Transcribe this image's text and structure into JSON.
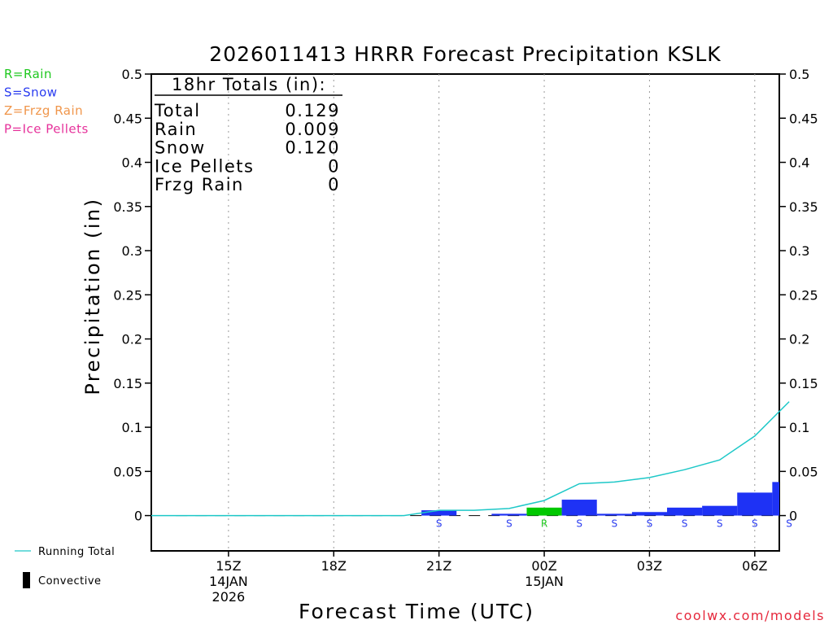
{
  "chart_data": {
    "type": "bar",
    "title": "2026011413 HRRR Forecast Precipitation KSLK",
    "xlabel": "Forecast Time (UTC)",
    "ylabel": "Precipitation (in)",
    "ylim": [
      -0.04,
      0.5
    ],
    "y_ticks": [
      0,
      0.05,
      0.1,
      0.15,
      0.2,
      0.25,
      0.3,
      0.35,
      0.4,
      0.45,
      0.5
    ],
    "y_tick_labels": [
      "0",
      "0.05",
      "0.1",
      "0.15",
      "0.2",
      "0.25",
      "0.3",
      "0.35",
      "0.4",
      "0.45",
      "0.5"
    ],
    "x_range_hours": [
      -1.2,
      16.7
    ],
    "x_ticks": [
      {
        "hour": 1,
        "lines": [
          "15Z",
          "14JAN",
          "2026"
        ]
      },
      {
        "hour": 4,
        "lines": [
          "18Z"
        ]
      },
      {
        "hour": 7,
        "lines": [
          "21Z"
        ]
      },
      {
        "hour": 10,
        "lines": [
          "00Z",
          "15JAN"
        ]
      },
      {
        "hour": 13,
        "lines": [
          "03Z"
        ]
      },
      {
        "hour": 16,
        "lines": [
          "06Z"
        ]
      }
    ],
    "bars": [
      {
        "hour": 0,
        "value": 0.0,
        "type": "S"
      },
      {
        "hour": 1,
        "value": 0.0,
        "type": "S"
      },
      {
        "hour": 2,
        "value": 0.0,
        "type": "S"
      },
      {
        "hour": 3,
        "value": 0.0,
        "type": "S"
      },
      {
        "hour": 4,
        "value": 0.0,
        "type": "S"
      },
      {
        "hour": 5,
        "value": 0.0,
        "type": "S"
      },
      {
        "hour": 6,
        "value": 0.0,
        "type": "S"
      },
      {
        "hour": 7,
        "value": 0.006,
        "type": "S"
      },
      {
        "hour": 8,
        "value": 0.0,
        "type": "S"
      },
      {
        "hour": 9,
        "value": 0.002,
        "type": "S"
      },
      {
        "hour": 10,
        "value": 0.009,
        "type": "R"
      },
      {
        "hour": 11,
        "value": 0.018,
        "type": "S"
      },
      {
        "hour": 12,
        "value": 0.002,
        "type": "S"
      },
      {
        "hour": 13,
        "value": 0.004,
        "type": "S"
      },
      {
        "hour": 14,
        "value": 0.009,
        "type": "S"
      },
      {
        "hour": 15,
        "value": 0.011,
        "type": "S"
      },
      {
        "hour": 16,
        "value": 0.026,
        "type": "S"
      },
      {
        "hour": 17,
        "value": 0.038,
        "type": "S"
      }
    ],
    "type_labels": [
      {
        "hour": 7,
        "label": "S"
      },
      {
        "hour": 9,
        "label": "S"
      },
      {
        "hour": 10,
        "label": "R"
      },
      {
        "hour": 11,
        "label": "S"
      },
      {
        "hour": 12,
        "label": "S"
      },
      {
        "hour": 13,
        "label": "S"
      },
      {
        "hour": 14,
        "label": "S"
      },
      {
        "hour": 15,
        "label": "S"
      },
      {
        "hour": 16,
        "label": "S"
      },
      {
        "hour": 16.98,
        "label": "S"
      }
    ],
    "running_total": {
      "hours": [
        -1.2,
        0,
        1,
        2,
        3,
        4,
        5,
        6,
        7,
        8,
        9,
        10,
        11,
        12,
        13,
        14,
        15,
        16,
        16.98
      ],
      "values": [
        0,
        0,
        0,
        0,
        0,
        0,
        0,
        0,
        0.006,
        0.006,
        0.008,
        0.017,
        0.036,
        0.038,
        0.043,
        0.052,
        0.063,
        0.09,
        0.129
      ]
    },
    "totals_box": {
      "heading": "18hr Totals (in):",
      "rows": [
        {
          "label": "Total",
          "value": "0.129"
        },
        {
          "label": "Rain",
          "value": "0.009"
        },
        {
          "label": "Snow",
          "value": "0.120"
        },
        {
          "label": "Ice Pellets",
          "value": "0"
        },
        {
          "label": "Frzg Rain",
          "value": "0"
        }
      ]
    },
    "legend_types": [
      {
        "text": "R=Rain",
        "color": "#1ec81e"
      },
      {
        "text": "S=Snow",
        "color": "#2a3cf0"
      },
      {
        "text": "Z=Frzg Rain",
        "color": "#f0964b"
      },
      {
        "text": "P=Ice Pellets",
        "color": "#e6329b"
      }
    ],
    "legend_lines": [
      {
        "text": "Running Total",
        "color": "#1ec8c8"
      },
      {
        "text": "Convective",
        "color": "#000000"
      }
    ],
    "colors": {
      "snow": "#1e32f5",
      "rain": "#00c800",
      "running_total": "#1ec8c8",
      "snow_label": "#2a3cf0",
      "rain_label": "#1ec81e",
      "credit": "#e6283c"
    },
    "credit": "coolwx.com/models"
  }
}
